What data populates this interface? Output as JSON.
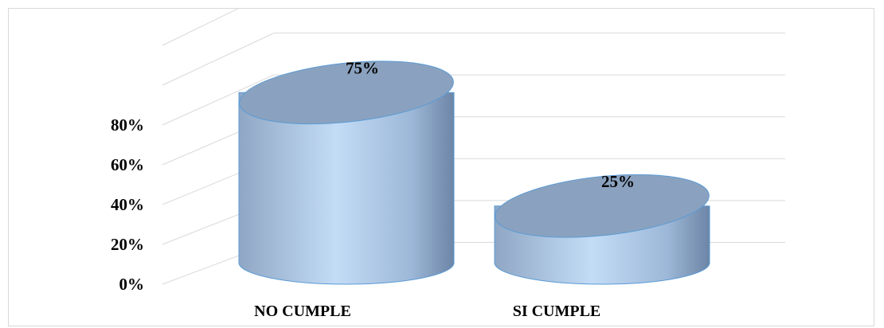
{
  "chart_data": {
    "type": "bar",
    "style": "3d-cylinder",
    "categories": [
      "NO CUMPLE",
      "SI CUMPLE"
    ],
    "values": [
      75,
      25
    ],
    "data_labels": [
      "75%",
      "25%"
    ],
    "y_ticks": [
      "0%",
      "20%",
      "40%",
      "60%",
      "80%"
    ],
    "ylim": [
      0,
      100
    ],
    "title": "",
    "xlabel": "",
    "ylabel": "",
    "grid": true,
    "legend": "none",
    "colors": {
      "bar_light": "#c3dcf6",
      "bar_mid": "#9db8d8",
      "bar_dark": "#6d85a6",
      "bar_top": "#8aa2bf",
      "bar_edge": "#5b9bd5",
      "grid": "#d9d9d9"
    }
  }
}
